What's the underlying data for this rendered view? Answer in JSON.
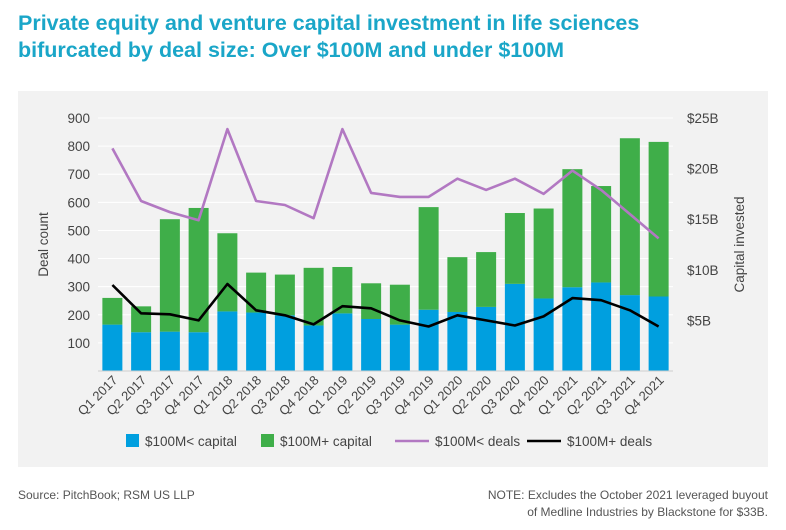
{
  "title_line1": "Private equity and venture capital investment in life sciences",
  "title_line2": "bifurcated by deal size: Over $100M and under $100M",
  "source": "Source: PitchBook; RSM US LLP",
  "note_line1": "NOTE: Excludes the October 2021 leveraged buyout",
  "note_line2": "of Medline Industries by Blackstone for $33B.",
  "colors": {
    "under_capital": "#009fdf",
    "over_capital": "#3fae49",
    "under_deals": "#b278c2",
    "over_deals": "#000000",
    "title": "#1aa6c8",
    "panel": "#f2f2f2"
  },
  "chart_data": {
    "type": "bar+line",
    "categories": [
      "Q1 2017",
      "Q2 2017",
      "Q3 2017",
      "Q4 2017",
      "Q1 2018",
      "Q2 2018",
      "Q3 2018",
      "Q4 2018",
      "Q1 2019",
      "Q2 2019",
      "Q3 2019",
      "Q4 2019",
      "Q1 2020",
      "Q2 2020",
      "Q3 2020",
      "Q4 2020",
      "Q1 2021",
      "Q2 2021",
      "Q3 2021",
      "Q4 2021"
    ],
    "left_axis": {
      "label": "Deal count",
      "range": [
        0,
        900
      ],
      "ticks": [
        100,
        200,
        300,
        400,
        500,
        600,
        700,
        800,
        900
      ],
      "tick_labels": [
        "100",
        "200",
        "300",
        "400",
        "500",
        "600",
        "700",
        "800",
        "900"
      ]
    },
    "right_axis": {
      "label": "Capital invested",
      "range": [
        0,
        25
      ],
      "ticks": [
        5,
        10,
        15,
        20,
        25
      ],
      "tick_labels": [
        "$5B",
        "$10B",
        "$15B",
        "$20B",
        "$25B"
      ]
    },
    "stack_axis": "left",
    "series": [
      {
        "name": "$100M< capital",
        "legend": "$100M< capital",
        "kind": "bar",
        "stack": "total",
        "values": [
          165,
          138,
          140,
          138,
          212,
          208,
          198,
          162,
          205,
          185,
          165,
          218,
          210,
          228,
          310,
          258,
          298,
          315,
          270,
          265
        ]
      },
      {
        "name": "$100M+ capital",
        "legend": "$100M+ capital",
        "kind": "bar",
        "stack": "total",
        "values": [
          95,
          92,
          400,
          442,
          278,
          142,
          145,
          205,
          165,
          127,
          142,
          365,
          195,
          195,
          252,
          320,
          420,
          343,
          558,
          550
        ]
      },
      {
        "name": "$100M< deals",
        "legend": "$100M< deals",
        "kind": "line",
        "values": [
          22.0,
          16.8,
          15.7,
          14.9,
          23.9,
          16.8,
          16.4,
          15.1,
          23.9,
          17.6,
          17.2,
          17.2,
          19.0,
          17.9,
          19.0,
          17.5,
          19.8,
          17.9,
          15.5,
          13.1
        ]
      },
      {
        "name": "$100M+ deals",
        "legend": "$100M+ deals",
        "kind": "line",
        "values": [
          8.5,
          5.7,
          5.6,
          5.0,
          8.6,
          6.0,
          5.5,
          4.6,
          6.4,
          6.2,
          5.0,
          4.4,
          5.5,
          5.0,
          4.5,
          5.4,
          7.2,
          7.0,
          6.0,
          4.4
        ]
      }
    ],
    "grid": true,
    "legend_position": "bottom"
  }
}
